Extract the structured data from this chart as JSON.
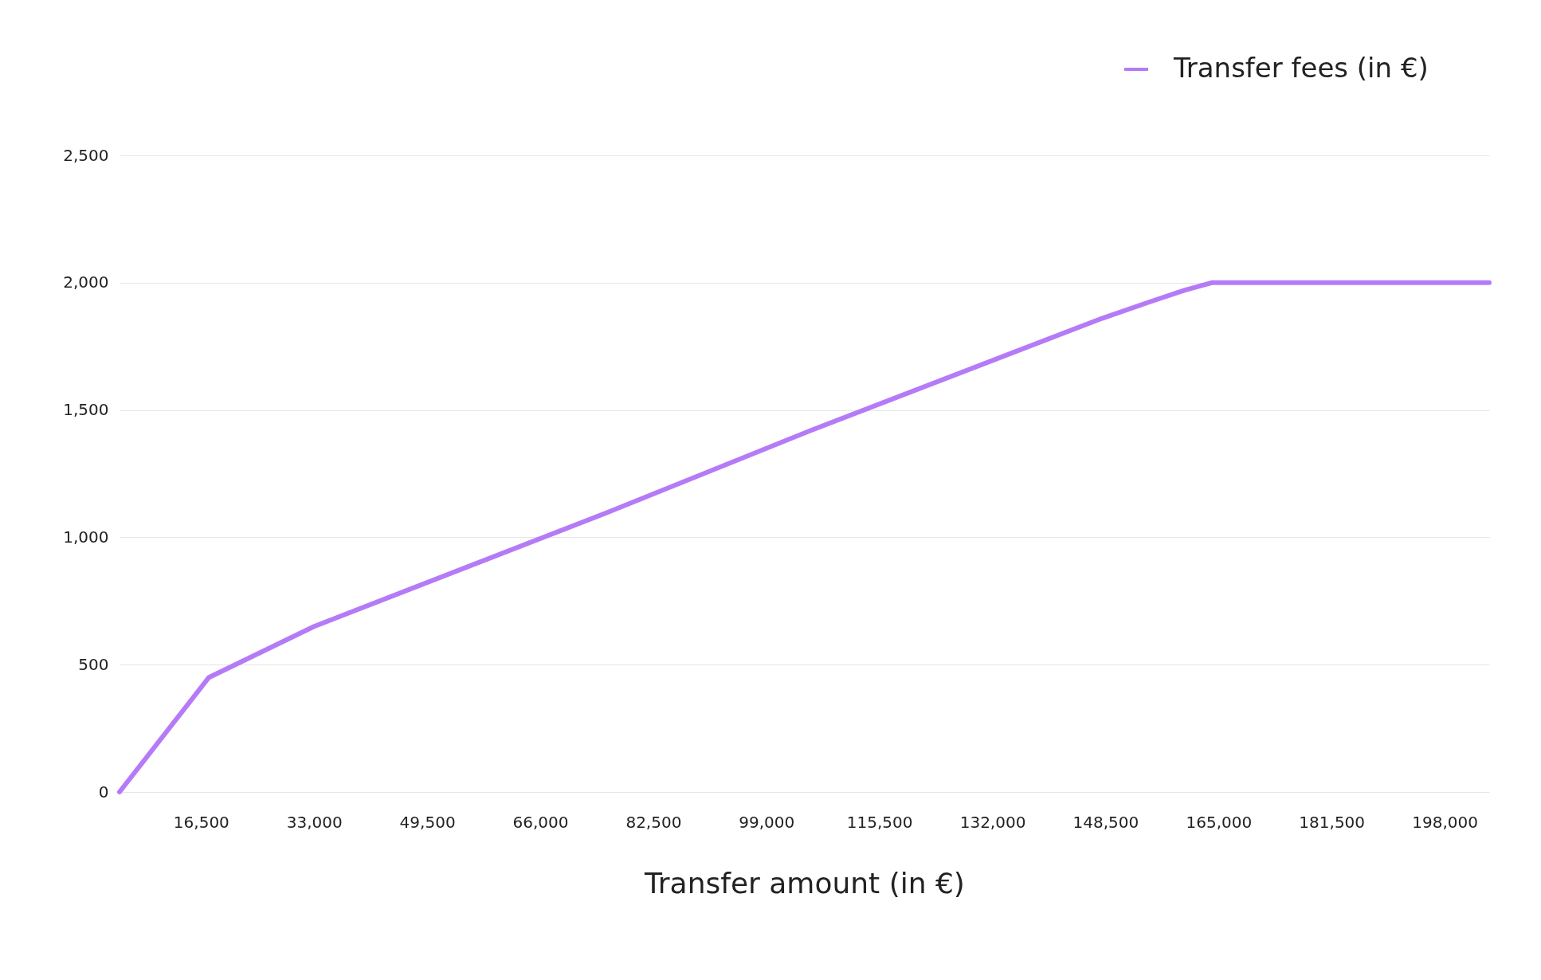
{
  "chart_data": {
    "type": "line",
    "xlabel": "Transfer amount (in €)",
    "x": [
      4600,
      17650,
      33000,
      76000,
      105500,
      148000,
      155000,
      160000,
      164000,
      204500
    ],
    "series": [
      {
        "name": "Transfer fees (in €)",
        "color": "#b57bf7",
        "values": [
          0,
          450,
          650,
          1100,
          1420,
          1860,
          1925,
          1970,
          2000,
          2000
        ]
      }
    ],
    "xlim": [
      4600,
      204500
    ],
    "xticks": [
      {
        "value": 16500,
        "label": "16,500"
      },
      {
        "value": 33000,
        "label": "33,000"
      },
      {
        "value": 49500,
        "label": "49,500"
      },
      {
        "value": 66000,
        "label": "66,000"
      },
      {
        "value": 82500,
        "label": "82,500"
      },
      {
        "value": 99000,
        "label": "99,000"
      },
      {
        "value": 115500,
        "label": "115,500"
      },
      {
        "value": 132000,
        "label": "132,000"
      },
      {
        "value": 148500,
        "label": "148,500"
      },
      {
        "value": 165000,
        "label": "165,000"
      },
      {
        "value": 181500,
        "label": "181,500"
      },
      {
        "value": 198000,
        "label": "198,000"
      }
    ],
    "ylim": [
      0,
      2500
    ],
    "yticks": [
      0,
      500,
      {
        "value": 1000,
        "label": "1,000"
      },
      {
        "value": 1500,
        "label": "1,500"
      },
      {
        "value": 2000,
        "label": "2,000"
      },
      {
        "value": 2500,
        "label": "2,500"
      }
    ],
    "grid": "y",
    "legend": "top right",
    "marker": "none",
    "line_style": "solid"
  }
}
